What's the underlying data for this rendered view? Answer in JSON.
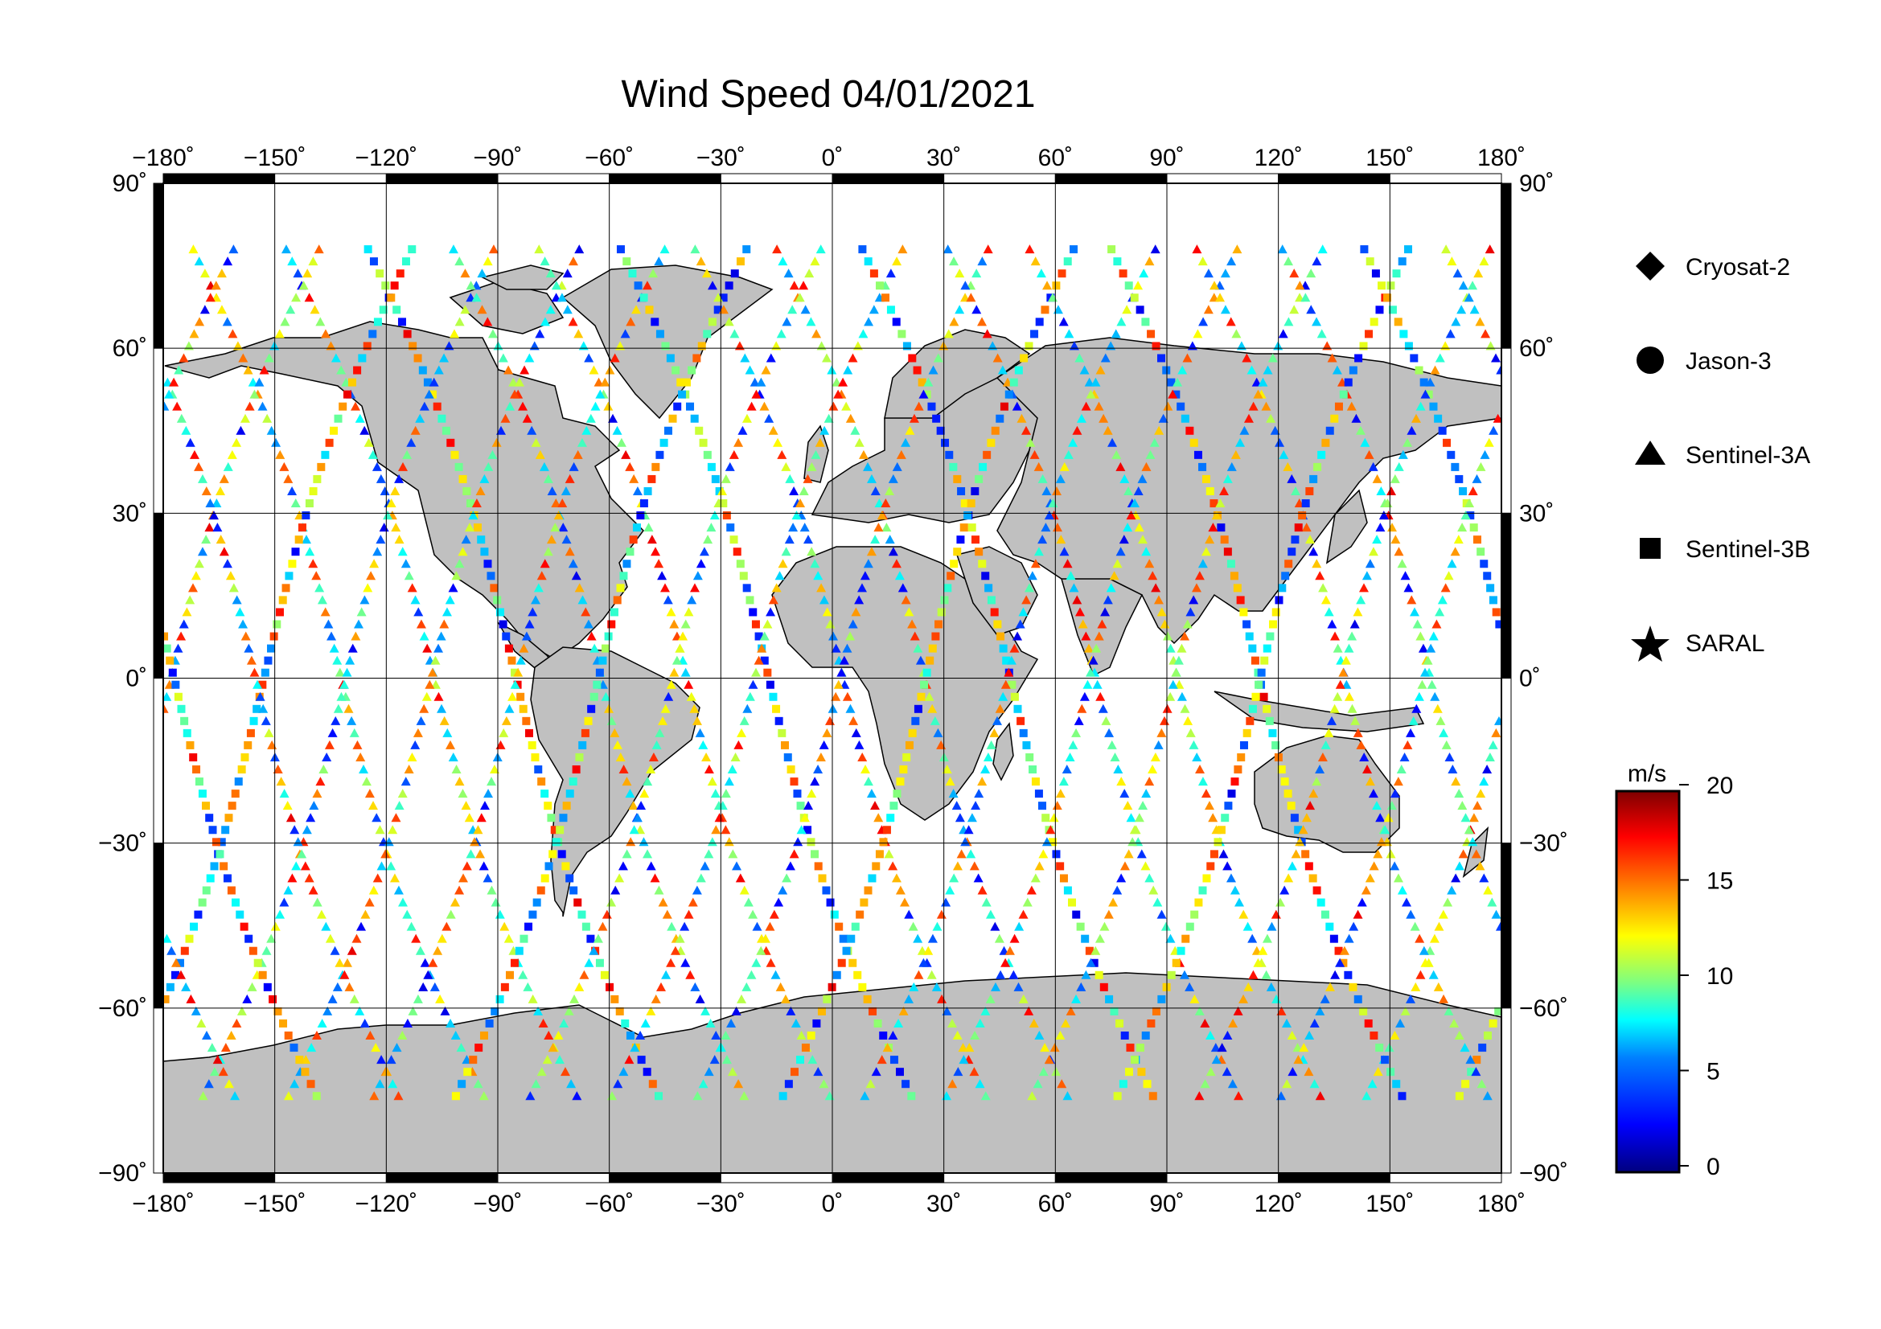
{
  "title": "Wind Speed 04/01/2021",
  "map": {
    "lon_range": [
      -180,
      180
    ],
    "lat_range": [
      -90,
      90
    ],
    "lon_ticks": [
      "−180˚",
      "−150˚",
      "−120˚",
      "−90˚",
      "−60˚",
      "−30˚",
      "0˚",
      "30˚",
      "60˚",
      "90˚",
      "120˚",
      "150˚",
      "180˚"
    ],
    "lat_ticks_left": [
      "90˚",
      "60˚",
      "30˚",
      "0˚",
      "−30˚",
      "−60˚",
      "−90˚"
    ],
    "lat_ticks_right": [
      "90˚",
      "60˚",
      "30˚",
      "0˚",
      "−30˚",
      "−60˚",
      "−90˚"
    ],
    "land_color": "#c0c0c0",
    "ocean_color": "#ffffff",
    "grid": true
  },
  "legend": {
    "items": [
      {
        "label": "Cryosat-2",
        "icon": "diamond-icon"
      },
      {
        "label": "Jason-3",
        "icon": "circle-icon"
      },
      {
        "label": "Sentinel-3A",
        "icon": "triangle-icon"
      },
      {
        "label": "Sentinel-3B",
        "icon": "square-icon"
      },
      {
        "label": "SARAL",
        "icon": "star-icon"
      }
    ]
  },
  "colorbar": {
    "unit": "m/s",
    "range": [
      0,
      20
    ],
    "ticks": [
      "0",
      "5",
      "10",
      "15",
      "20"
    ],
    "colormap": [
      "#00007f",
      "#0000ff",
      "#007fff",
      "#00ffff",
      "#7fff7f",
      "#ffff00",
      "#ff7f00",
      "#ff0000",
      "#7f0000"
    ]
  }
}
